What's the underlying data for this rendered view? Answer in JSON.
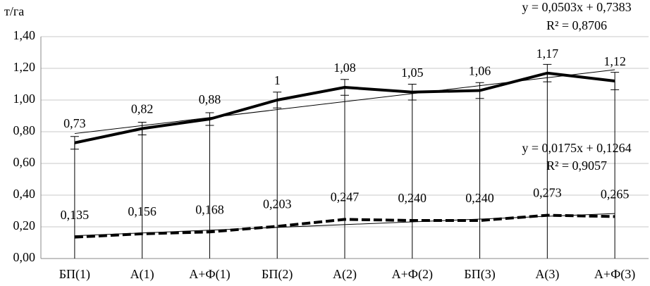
{
  "chart_data": {
    "type": "line",
    "y_label": "т/га",
    "categories": [
      "БП(1)",
      "А(1)",
      "А+Ф(1)",
      "БП(2)",
      "А(2)",
      "А+Ф(2)",
      "БП(3)",
      "А(3)",
      "А+Ф(3)"
    ],
    "series": [
      {
        "color": "#000000",
        "style": "solid",
        "values": [
          0.73,
          0.82,
          0.88,
          1,
          1.08,
          1.05,
          1.06,
          1.17,
          1.12
        ],
        "value_labels": [
          "0,73",
          "0,82",
          "0,88",
          "1",
          "1,08",
          "1,05",
          "1,06",
          "1,17",
          "1,12"
        ],
        "errors": [
          0.04,
          0.04,
          0.04,
          0.05,
          0.05,
          0.05,
          0.05,
          0.055,
          0.055
        ],
        "trendline": {
          "slope": 0.0503,
          "intercept": 0.7383
        }
      },
      {
        "color": "#000000",
        "style": "dashed",
        "values": [
          0.135,
          0.156,
          0.168,
          0.203,
          0.247,
          0.24,
          0.24,
          0.273,
          0.265
        ],
        "value_labels": [
          "0,135",
          "0,156",
          "0,168",
          "0,203",
          "0,247",
          "0,240",
          "0,240",
          "0,273",
          "0,265"
        ],
        "trendline": {
          "slope": 0.0175,
          "intercept": 0.1264
        }
      }
    ],
    "annotations": [
      "y = 0,0503x + 0,7383",
      "R² = 0,8706",
      "y = 0,0175x + 0,1264",
      "R² = 0,9057"
    ],
    "ylim": [
      0,
      1.4
    ],
    "yticks": [
      {
        "value": 0,
        "label": "0,00"
      },
      {
        "value": 0.2,
        "label": "0,20"
      },
      {
        "value": 0.4,
        "label": "0,40"
      },
      {
        "value": 0.6,
        "label": "0,60"
      },
      {
        "value": 0.8,
        "label": "0,80"
      },
      {
        "value": 1,
        "label": "1,00"
      },
      {
        "value": 1.2,
        "label": "1,20"
      },
      {
        "value": 1.4,
        "label": "1,40"
      }
    ],
    "grid": true
  }
}
